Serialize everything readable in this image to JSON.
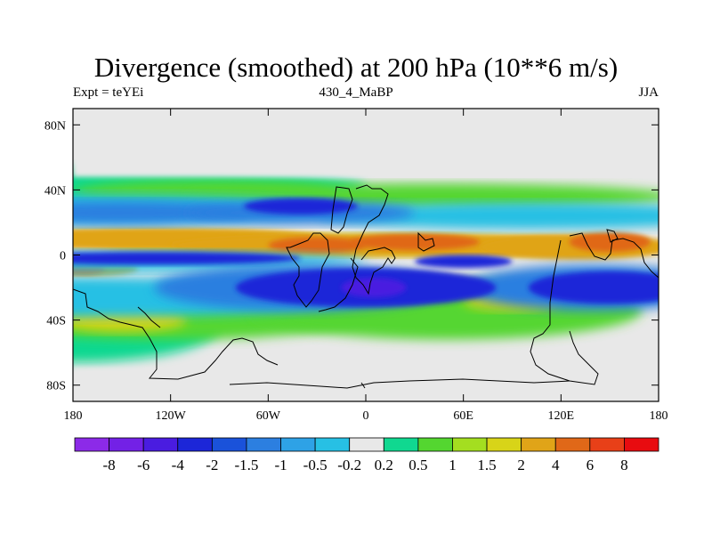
{
  "chart_data": {
    "type": "heatmap",
    "title": "Divergence (smoothed) at 200 hPa (10**6 m/s)",
    "subtitle_left": "Expt = teYEi",
    "subtitle_center": "430_4_MaBP",
    "subtitle_right": "JJA",
    "x_range": [
      -180,
      180
    ],
    "y_range": [
      -90,
      90
    ],
    "x_ticks": [
      {
        "value": -180,
        "label": "180"
      },
      {
        "value": -120,
        "label": "120W"
      },
      {
        "value": -60,
        "label": "60W"
      },
      {
        "value": 0,
        "label": "0"
      },
      {
        "value": 60,
        "label": "60E"
      },
      {
        "value": 120,
        "label": "120E"
      },
      {
        "value": 180,
        "label": "180"
      }
    ],
    "y_ticks": [
      {
        "value": 80,
        "label": "80N"
      },
      {
        "value": 40,
        "label": "40N"
      },
      {
        "value": 0,
        "label": "0"
      },
      {
        "value": -40,
        "label": "40S"
      },
      {
        "value": -80,
        "label": "80S"
      }
    ],
    "colorbar_levels": [
      "-8",
      "-6",
      "-4",
      "-2",
      "-1.5",
      "-1",
      "-0.5",
      "-0.2",
      "0.2",
      "0.5",
      "1",
      "1.5",
      "2",
      "4",
      "6",
      "8"
    ],
    "colorbar_colors": [
      "#8c2ae8",
      "#7321e6",
      "#4a1ce0",
      "#1c26d8",
      "#1a52da",
      "#2c7fe0",
      "#2ea2e6",
      "#27c0e4",
      "#e8e8e8",
      "#10d890",
      "#54d630",
      "#a4de20",
      "#d8d418",
      "#e0a418",
      "#e06818",
      "#e84018",
      "#e80c10"
    ],
    "field_colors": {
      "neutral": "#e8e8e8",
      "neg_weak": "#27c0e4",
      "neg_mid": "#2c7fe0",
      "neg_strong": "#1c26d8",
      "neg_max": "#4a1ce0",
      "pos_weak": "#10d890",
      "pos_mid": "#54d630",
      "pos_yellow": "#d8d418",
      "pos_orange": "#e0a418",
      "pos_strong": "#e06818"
    }
  }
}
